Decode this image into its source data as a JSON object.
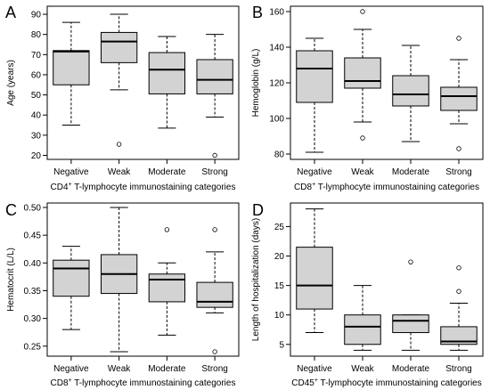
{
  "style": {
    "box_fill": "#d3d3d3",
    "stroke": "#000000",
    "background": "#ffffff"
  },
  "chart_data": [
    {
      "panel": "A",
      "type": "boxplot",
      "ylabel": "Age (years)",
      "xlabel_parts": [
        "CD4",
        "+",
        " T-lymphocyte immunostaining categories"
      ],
      "categories": [
        "Negative",
        "Weak",
        "Moderate",
        "Strong"
      ],
      "ylim": [
        18,
        94
      ],
      "yticks": [
        20,
        30,
        40,
        50,
        60,
        70,
        80,
        90
      ],
      "boxes": [
        {
          "min": 35,
          "q1": 55,
          "median": 71.5,
          "q3": 72,
          "max": 86,
          "outliers": []
        },
        {
          "min": 52.5,
          "q1": 66,
          "median": 76.5,
          "q3": 81,
          "max": 90,
          "outliers": [
            25.5
          ]
        },
        {
          "min": 33.5,
          "q1": 50.5,
          "median": 62.5,
          "q3": 71,
          "max": 79,
          "outliers": []
        },
        {
          "min": 39,
          "q1": 50.5,
          "median": 57.5,
          "q3": 67.5,
          "max": 80,
          "outliers": [
            20
          ]
        }
      ]
    },
    {
      "panel": "B",
      "type": "boxplot",
      "ylabel": "Hemoglobin (g/L)",
      "xlabel_parts": [
        "CD8",
        "+",
        " T-lymphocyte immunostaining categories"
      ],
      "categories": [
        "Negative",
        "Weak",
        "Moderate",
        "Strong"
      ],
      "ylim": [
        77,
        163
      ],
      "yticks": [
        80,
        100,
        120,
        140,
        160
      ],
      "boxes": [
        {
          "min": 81,
          "q1": 109,
          "median": 128,
          "q3": 138,
          "max": 145,
          "outliers": []
        },
        {
          "min": 98,
          "q1": 117,
          "median": 121,
          "q3": 134,
          "max": 150,
          "outliers": [
            89,
            160
          ]
        },
        {
          "min": 87,
          "q1": 107,
          "median": 113.5,
          "q3": 124,
          "max": 141,
          "outliers": []
        },
        {
          "min": 97,
          "q1": 104.5,
          "median": 112.5,
          "q3": 117.5,
          "max": 133,
          "outliers": [
            83,
            145
          ]
        }
      ]
    },
    {
      "panel": "C",
      "type": "boxplot",
      "ylabel": "Hematocrit (L/L)",
      "xlabel_parts": [
        "CD8",
        "+",
        " T-lymphocyte immunostaining categories"
      ],
      "categories": [
        "Negative",
        "Weak",
        "Moderate",
        "Strong"
      ],
      "ylim": [
        0.232,
        0.508
      ],
      "yticks": [
        0.25,
        0.3,
        0.35,
        0.4,
        0.45,
        0.5
      ],
      "tick_decimals": 2,
      "boxes": [
        {
          "min": 0.28,
          "q1": 0.34,
          "median": 0.39,
          "q3": 0.405,
          "max": 0.43,
          "outliers": []
        },
        {
          "min": 0.24,
          "q1": 0.345,
          "median": 0.38,
          "q3": 0.415,
          "max": 0.5,
          "outliers": []
        },
        {
          "min": 0.27,
          "q1": 0.33,
          "median": 0.37,
          "q3": 0.38,
          "max": 0.4,
          "outliers": [
            0.46
          ]
        },
        {
          "min": 0.31,
          "q1": 0.32,
          "median": 0.33,
          "q3": 0.365,
          "max": 0.42,
          "outliers": [
            0.24,
            0.46
          ]
        }
      ]
    },
    {
      "panel": "D",
      "type": "boxplot",
      "ylabel": "Length of hospitalization (days)",
      "xlabel_parts": [
        "CD45",
        "+",
        " T-lymphocyte immunostaining categories"
      ],
      "categories": [
        "Negative",
        "Weak",
        "Moderate",
        "Strong"
      ],
      "ylim": [
        3,
        29
      ],
      "yticks": [
        5,
        10,
        15,
        20,
        25
      ],
      "boxes": [
        {
          "min": 7,
          "q1": 11,
          "median": 15,
          "q3": 21.5,
          "max": 28,
          "outliers": []
        },
        {
          "min": 4,
          "q1": 5,
          "median": 8,
          "q3": 10,
          "max": 15,
          "outliers": []
        },
        {
          "min": 4,
          "q1": 7,
          "median": 9,
          "q3": 10,
          "max": 10,
          "outliers": [
            19
          ]
        },
        {
          "min": 4,
          "q1": 5,
          "median": 5.5,
          "q3": 8,
          "max": 12,
          "outliers": [
            14,
            18
          ]
        }
      ]
    }
  ]
}
